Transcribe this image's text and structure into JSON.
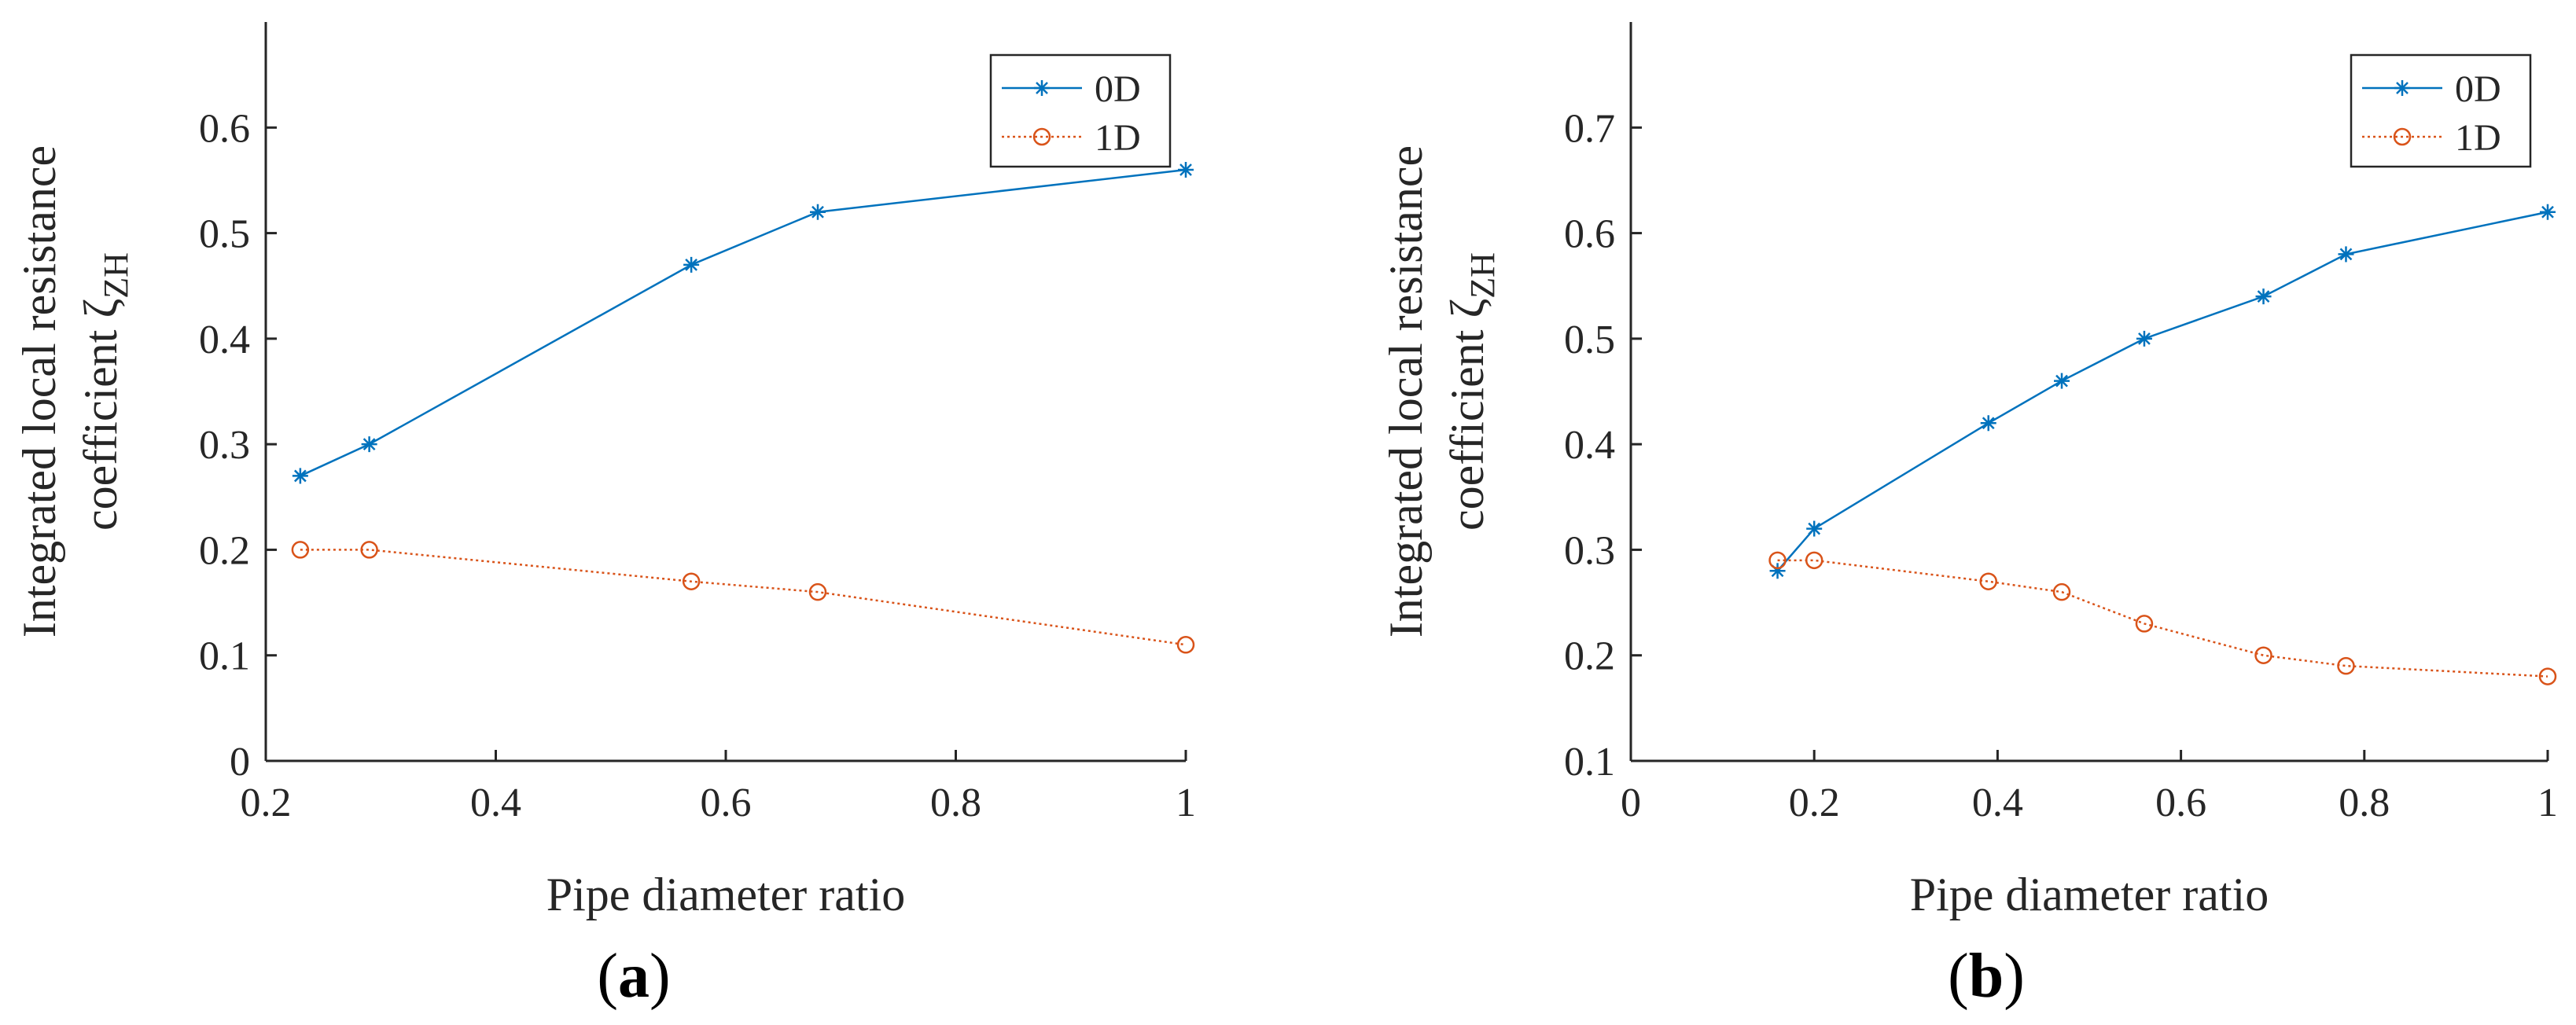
{
  "colors": {
    "series_0D": "#0072BD",
    "series_1D": "#D95319",
    "axis": "#262626"
  },
  "chart_data": [
    {
      "type": "line",
      "panel_label": "(a)",
      "panel_letter": "a",
      "title": "",
      "xlabel": "Pipe diameter ratio",
      "ylabel_line1": "Integrated local resistance",
      "ylabel_line2": "coefficient ζ",
      "ylabel_subscript": "ZH",
      "xlim": [
        0.2,
        1.0
      ],
      "ylim": [
        0,
        0.7
      ],
      "xticks": [
        0.2,
        0.4,
        0.6,
        0.8,
        1
      ],
      "xtick_labels": [
        "0.2",
        "0.4",
        "0.6",
        "0.8",
        "1"
      ],
      "yticks": [
        0,
        0.1,
        0.2,
        0.3,
        0.4,
        0.5,
        0.6
      ],
      "ytick_labels": [
        "0",
        "0.1",
        "0.2",
        "0.3",
        "0.4",
        "0.5",
        "0.6"
      ],
      "legend_position": "top-right",
      "series": [
        {
          "name": "0D",
          "marker": "asterisk",
          "line_style": "solid",
          "x": [
            0.23,
            0.29,
            0.57,
            0.68,
            1.0
          ],
          "y": [
            0.27,
            0.3,
            0.47,
            0.52,
            0.56
          ]
        },
        {
          "name": "1D",
          "marker": "circle",
          "line_style": "dotted",
          "x": [
            0.23,
            0.29,
            0.57,
            0.68,
            1.0
          ],
          "y": [
            0.2,
            0.2,
            0.17,
            0.16,
            0.11
          ]
        }
      ]
    },
    {
      "type": "line",
      "panel_label": "(b)",
      "panel_letter": "b",
      "title": "",
      "xlabel": "Pipe diameter ratio",
      "ylabel_line1": "Integrated local resistance",
      "ylabel_line2": "coefficient ζ",
      "ylabel_subscript": "ZH",
      "xlim": [
        0,
        1.0
      ],
      "ylim": [
        0.1,
        0.8
      ],
      "xticks": [
        0,
        0.2,
        0.4,
        0.6,
        0.8,
        1
      ],
      "xtick_labels": [
        "0",
        "0.2",
        "0.4",
        "0.6",
        "0.8",
        "1"
      ],
      "yticks": [
        0.1,
        0.2,
        0.3,
        0.4,
        0.5,
        0.6,
        0.7
      ],
      "ytick_labels": [
        "0.1",
        "0.2",
        "0.3",
        "0.4",
        "0.5",
        "0.6",
        "0.7"
      ],
      "legend_position": "top-right",
      "series": [
        {
          "name": "0D",
          "marker": "asterisk",
          "line_style": "solid",
          "x": [
            0.16,
            0.2,
            0.39,
            0.47,
            0.56,
            0.69,
            0.78,
            1.0
          ],
          "y": [
            0.28,
            0.32,
            0.42,
            0.46,
            0.5,
            0.54,
            0.58,
            0.62
          ]
        },
        {
          "name": "1D",
          "marker": "circle",
          "line_style": "dotted",
          "x": [
            0.16,
            0.2,
            0.39,
            0.47,
            0.56,
            0.69,
            0.78,
            1.0
          ],
          "y": [
            0.29,
            0.29,
            0.27,
            0.26,
            0.23,
            0.2,
            0.19,
            0.18
          ]
        }
      ]
    }
  ]
}
